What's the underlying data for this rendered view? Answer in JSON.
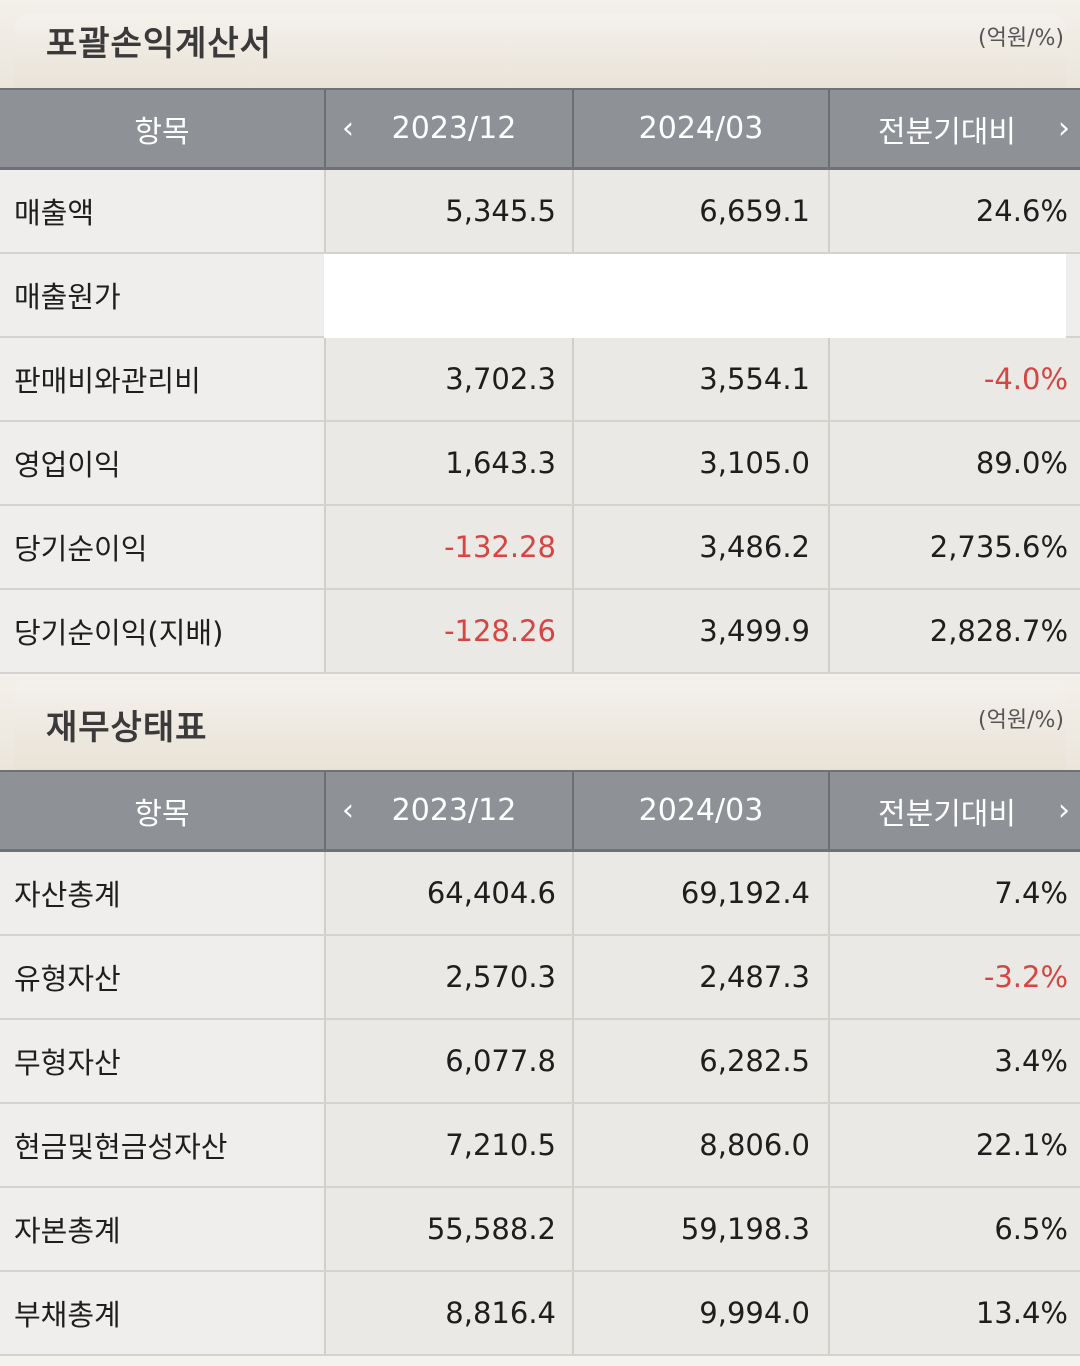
{
  "income_statement": {
    "title": "포괄손익계산서",
    "unit": "(억원/%)",
    "headers": {
      "item": "항목",
      "col1": "2023/12",
      "col2": "2024/03",
      "col3": "전분기대비",
      "prev_icon": "chevron-left-icon",
      "next_icon": "chevron-right-icon"
    },
    "rows": [
      {
        "label": "매출액",
        "v1": "5,345.5",
        "v2": "6,659.1",
        "v3": "24.6%"
      },
      {
        "label": "매출원가",
        "v1": "",
        "v2": "",
        "v3": ""
      },
      {
        "label": "판매비와관리비",
        "v1": "3,702.3",
        "v2": "3,554.1",
        "v3": "-4.0%"
      },
      {
        "label": "영업이익",
        "v1": "1,643.3",
        "v2": "3,105.0",
        "v3": "89.0%"
      },
      {
        "label": "당기순이익",
        "v1": "-132.28",
        "v2": "3,486.2",
        "v3": "2,735.6%"
      },
      {
        "label": "당기순이익(지배)",
        "v1": "-128.26",
        "v2": "3,499.9",
        "v3": "2,828.7%"
      }
    ]
  },
  "balance_sheet": {
    "title": "재무상태표",
    "unit": "(억원/%)",
    "headers": {
      "item": "항목",
      "col1": "2023/12",
      "col2": "2024/03",
      "col3": "전분기대비",
      "prev_icon": "chevron-left-icon",
      "next_icon": "chevron-right-icon"
    },
    "rows": [
      {
        "label": "자산총계",
        "v1": "64,404.6",
        "v2": "69,192.4",
        "v3": "7.4%"
      },
      {
        "label": "유형자산",
        "v1": "2,570.3",
        "v2": "2,487.3",
        "v3": "-3.2%"
      },
      {
        "label": "무형자산",
        "v1": "6,077.8",
        "v2": "6,282.5",
        "v3": "3.4%"
      },
      {
        "label": "현금및현금성자산",
        "v1": "7,210.5",
        "v2": "8,806.0",
        "v3": "22.1%"
      },
      {
        "label": "자본총계",
        "v1": "55,588.2",
        "v2": "59,198.3",
        "v3": "6.5%"
      },
      {
        "label": "부채총계",
        "v1": "8,816.4",
        "v2": "9,994.0",
        "v3": "13.4%"
      }
    ]
  },
  "colors": {
    "negative": "#d64541",
    "header_bg": "#8e9196"
  }
}
